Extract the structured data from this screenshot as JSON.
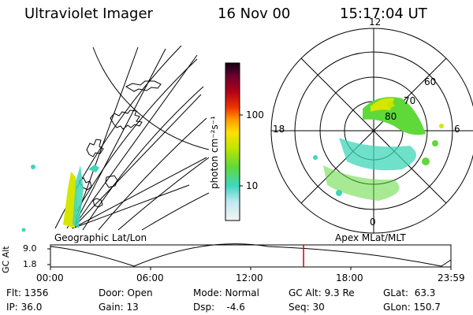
{
  "header": {
    "instrument": "Ultraviolet Imager",
    "date": "16 Nov 00",
    "time": "15:17:04 UT"
  },
  "colorbar": {
    "unit_label": "photon cm⁻²s⁻¹",
    "ticks": [
      "100",
      "10"
    ]
  },
  "left_panel": {
    "caption": "Geographic Lat/Lon"
  },
  "right_panel": {
    "caption": "Apex MLat/MLT",
    "mlt_labels": {
      "top": "12",
      "left": "18",
      "right": "6",
      "bottom": "0"
    },
    "lat_labels": [
      "60",
      "70",
      "80"
    ]
  },
  "orbit": {
    "ylabel": "GC Alt",
    "y_ticks": [
      "9.0",
      "1.8"
    ],
    "x_ticks": [
      "00:00",
      "06:00",
      "12:00",
      "18:00",
      "23:59"
    ],
    "current_time_fraction": 0.632
  },
  "status": {
    "flt": "Flt: 1356",
    "ip": "IP: 36.0",
    "door": "Door: Open",
    "gain": "Gain: 13",
    "mode": "Mode: Normal",
    "dsp": "Dsp:    -4.6",
    "gcalt": "GC Alt: 9.3 Re",
    "seq": "Seq: 30",
    "glat": "GLat:  63.3",
    "glon": "GLon: 150.7"
  },
  "colors": {
    "marker": "#cc0000",
    "aurora_yellow": "#d6e600",
    "aurora_green": "#5fd93a",
    "aurora_cyan": "#3fd6b8"
  }
}
